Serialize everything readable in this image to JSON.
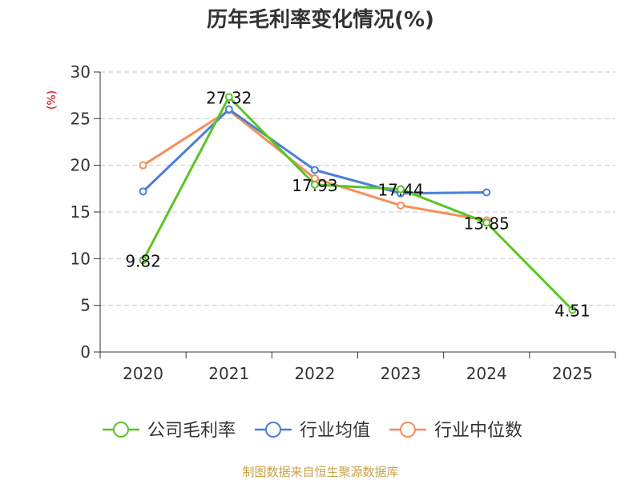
{
  "title": "历年毛利率变化情况(%)",
  "source": "制图数据来自恒生聚源数据库",
  "chart_data": {
    "type": "line",
    "title": "历年毛利率变化情况(%)",
    "ylabel": "(%)",
    "xlabel": "",
    "categories": [
      "2020",
      "2021",
      "2022",
      "2023",
      "2024",
      "2025"
    ],
    "ylim": [
      0,
      30
    ],
    "yticks": [
      0,
      5,
      10,
      15,
      20,
      25,
      30
    ],
    "grid": "horizontal dashed",
    "legend_position": "bottom",
    "series": [
      {
        "name": "公司毛利率",
        "color": "#5ac526",
        "values": [
          9.82,
          27.32,
          17.93,
          17.44,
          13.85,
          4.51
        ],
        "labels": [
          "9.82",
          "27.32",
          "17.93",
          "17.44",
          "13.85",
          "4.51"
        ]
      },
      {
        "name": "行业均值",
        "color": "#4a7ed9",
        "values": [
          17.2,
          26.0,
          19.5,
          17.0,
          17.1,
          null
        ]
      },
      {
        "name": "行业中位数",
        "color": "#f58e5a",
        "values": [
          20.0,
          25.9,
          18.6,
          15.7,
          14.1,
          null
        ]
      }
    ]
  }
}
